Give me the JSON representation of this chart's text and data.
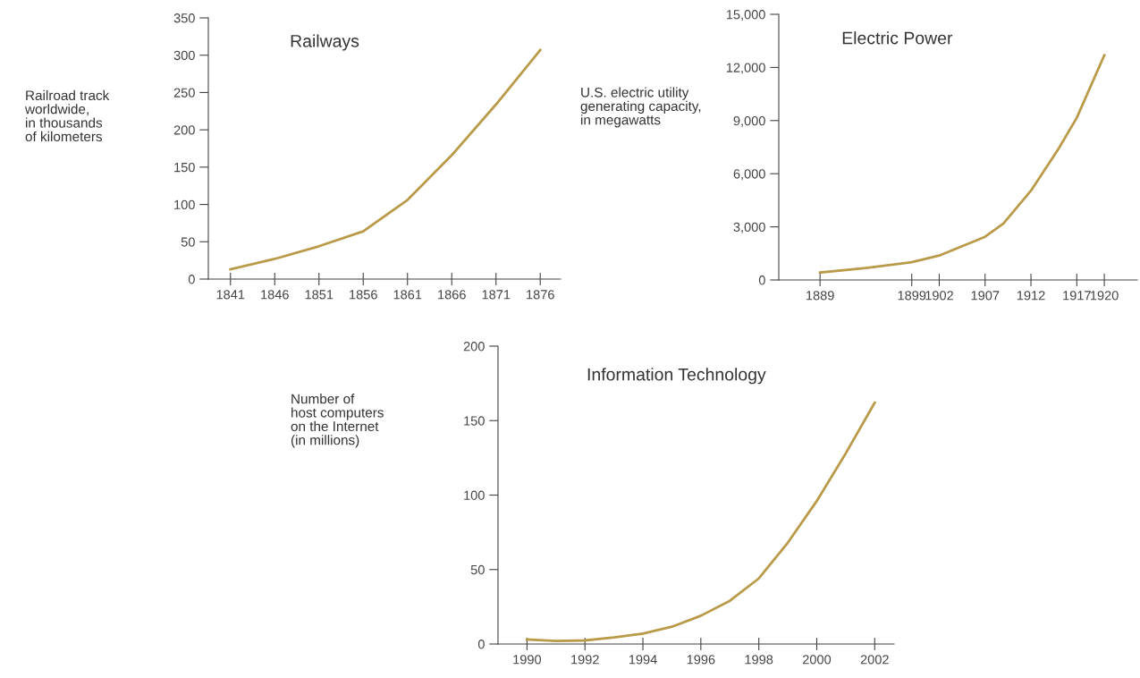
{
  "chart_data": [
    {
      "type": "line",
      "title": "Railways",
      "ylabel": "Railroad track\nworldwide,\nin thousands\nof kilometers",
      "x": [
        1841,
        1846,
        1851,
        1856,
        1861,
        1866,
        1871,
        1876
      ],
      "values": [
        13,
        27,
        44,
        64,
        106,
        166,
        234,
        307
      ],
      "color": "#b89a48",
      "xlim": [
        1838.5,
        1878.3
      ],
      "ylim": [
        0,
        350
      ],
      "xticks": [
        1841,
        1846,
        1851,
        1856,
        1861,
        1866,
        1871,
        1876
      ],
      "yticks": [
        0,
        50,
        100,
        150,
        200,
        250,
        300,
        350
      ]
    },
    {
      "type": "line",
      "title": "Electric Power",
      "ylabel": "U.S. electric utility\ngenerating capacity,\nin megawatts",
      "x": [
        1889,
        1894,
        1899,
        1902,
        1907,
        1909,
        1912,
        1915,
        1917,
        1920
      ],
      "values": [
        420,
        670,
        1000,
        1380,
        2440,
        3190,
        5040,
        7400,
        9160,
        12690
      ],
      "color": "#b89a48",
      "xlim": [
        1884.5,
        1923.6
      ],
      "ylim": [
        0,
        15000
      ],
      "xticks": [
        1889,
        1899,
        1902,
        1907,
        1912,
        1917,
        1920
      ],
      "yticks": [
        {
          "value": 0,
          "label": "0"
        },
        {
          "value": 3000,
          "label": "3,000"
        },
        {
          "value": 6000,
          "label": "6,000"
        },
        {
          "value": 9000,
          "label": "9,000"
        },
        {
          "value": 12000,
          "label": "12,000"
        },
        {
          "value": 15000,
          "label": "15,000"
        }
      ]
    },
    {
      "type": "line",
      "title": "Information Technology",
      "ylabel": "Number of\nhost computers\non the Internet\n(in millions)",
      "x": [
        1990,
        1991,
        1992,
        1993,
        1994,
        1995,
        1996,
        1997,
        1998,
        1999,
        2000,
        2001,
        2002
      ],
      "values": [
        3,
        2,
        2.4,
        4.4,
        7,
        11.6,
        19,
        29,
        44,
        68,
        96,
        128,
        162
      ],
      "color": "#b89a48",
      "xlim": [
        1989.0,
        2002.67
      ],
      "ylim": [
        0,
        200
      ],
      "xticks": [
        1990,
        1992,
        1994,
        1996,
        1998,
        2000,
        2002
      ],
      "yticks": [
        0,
        50,
        100,
        150,
        200
      ]
    }
  ]
}
